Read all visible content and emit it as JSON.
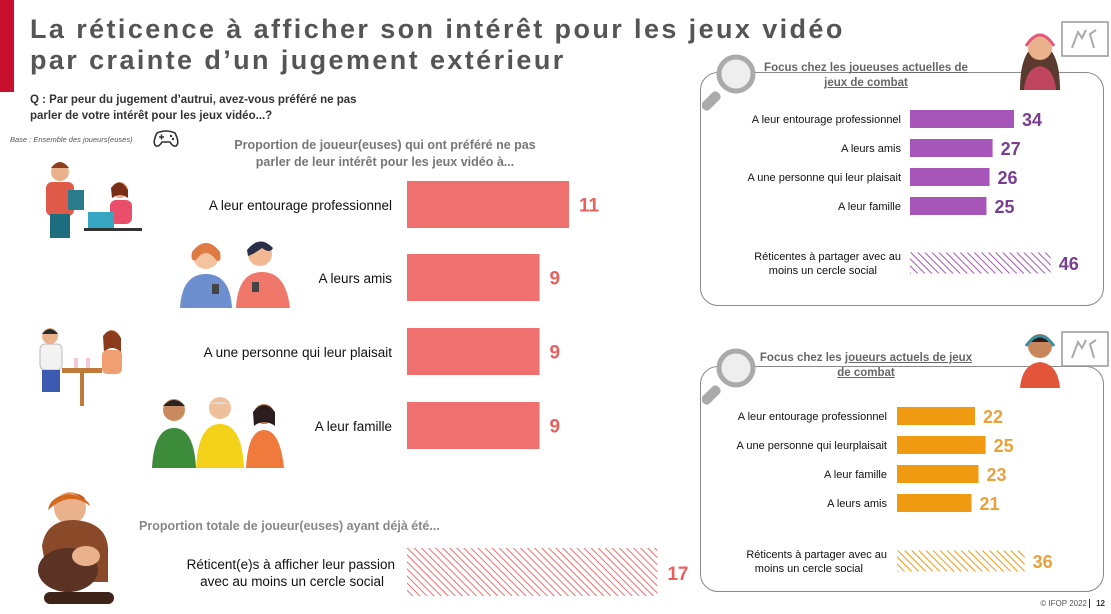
{
  "page": {
    "title_line1": "La réticence à afficher son intérêt pour les jeux vidéo",
    "title_line2": "par crainte d’un jugement extérieur",
    "question": "Q : Par peur du jugement d’autrui, avez-vous préféré ne pas parler de votre intérêt pour les jeux vidéo...?",
    "base": "Base : Ensemble des joueurs(euses)",
    "chart_title": "Proportion de joueur(euses) qui ont préféré ne pas parler de leur intérêt pour les jeux vidéo à...",
    "total_title": "Proportion totale de joueur(euses) ayant déjà été...",
    "footer": "© IFOP 2022",
    "page_number": "12"
  },
  "panels": {
    "women": {
      "heading_prefix": "Focus chez les ",
      "heading_underlined": "joueuses actuelles de jeux de combat"
    },
    "men": {
      "heading_prefix": "Focus chez les ",
      "heading_underlined": "joueurs actuels de jeux de combat"
    }
  },
  "colors": {
    "main_bar": "#f07070",
    "main_value": "#e8605e",
    "women_bar": "#a656b8",
    "women_value": "#7a3e91",
    "men_bar": "#f09a12",
    "men_value": "#eaa13a",
    "title": "#555555",
    "accent": "#c8102e"
  },
  "chart_data": [
    {
      "type": "bar",
      "orientation": "horizontal",
      "title": "Proportion de joueur(euses) qui ont préféré ne pas parler de leur intérêt pour les jeux vidéo à...",
      "categories": [
        "A leur entourage professionnel",
        "A leurs amis",
        "A une personne qui leur plaisait",
        "A leur famille"
      ],
      "values": [
        11,
        9,
        9,
        9
      ],
      "unit": "%"
    },
    {
      "type": "bar",
      "orientation": "horizontal",
      "title": "Proportion totale de joueur(euses) ayant déjà été...",
      "categories": [
        "Réticent(e)s à afficher leur passion avec au moins un cercle social"
      ],
      "values": [
        17
      ],
      "hatched": true,
      "unit": "%"
    },
    {
      "type": "bar",
      "orientation": "horizontal",
      "title": "Focus chez les joueuses actuelles de jeux de combat",
      "categories": [
        "A leur entourage professionnel",
        "A leurs amis",
        "A une personne qui leur plaisait",
        "A leur famille",
        "Réticentes à partager avec au moins un cercle social"
      ],
      "values": [
        34,
        27,
        26,
        25,
        46
      ],
      "hatched_last": true,
      "unit": "%"
    },
    {
      "type": "bar",
      "orientation": "horizontal",
      "title": "Focus chez les joueurs actuels de jeux de combat",
      "categories": [
        "A leur entourage professionnel",
        "A une personne qui leurplaisait",
        "A leur famille",
        "A leurs amis",
        "Réticents à partager avec au moins un cercle social"
      ],
      "values": [
        22,
        25,
        23,
        21,
        36
      ],
      "hatched_last": true,
      "unit": "%"
    }
  ]
}
